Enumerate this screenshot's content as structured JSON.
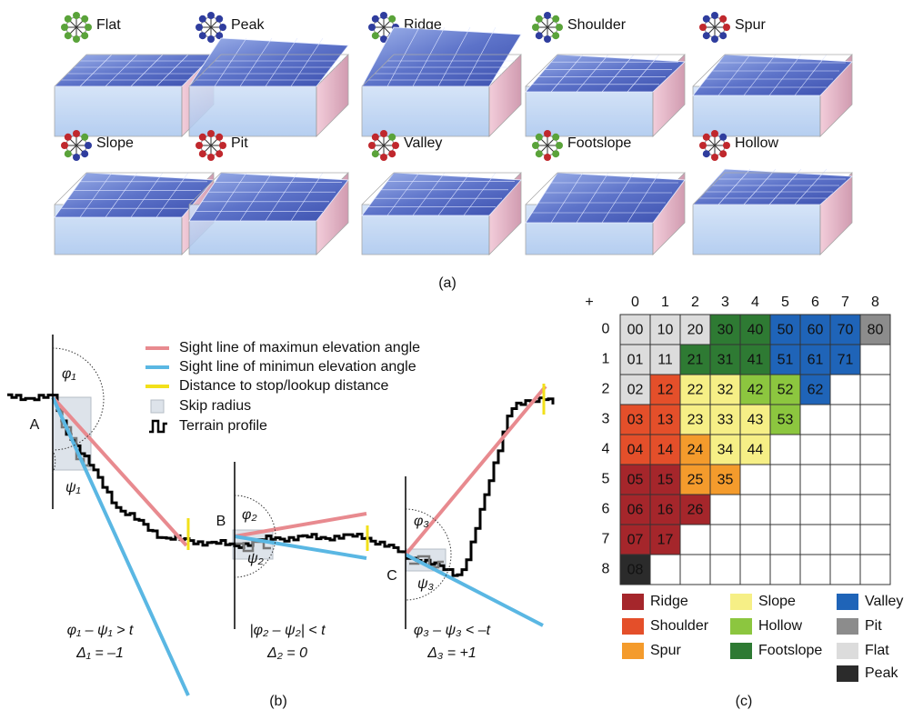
{
  "panel_a": {
    "landforms": [
      "Flat",
      "Peak",
      "Ridge",
      "Shoulder",
      "Spur",
      "Slope",
      "Pit",
      "Valley",
      "Footslope",
      "Hollow"
    ],
    "caption": "(a)"
  },
  "panel_b": {
    "legend": [
      "Sight line of maximun elevation angle",
      "Sight line of minimun elevation angle",
      "Distance to stop/lookup distance",
      "Skip radius",
      "Terrain profile"
    ],
    "points": [
      "A",
      "B",
      "C"
    ],
    "angles": [
      [
        "φ₁",
        "ψ₁"
      ],
      [
        "φ₂",
        "ψ₂"
      ],
      [
        "φ₃",
        "ψ₃"
      ]
    ],
    "conditions": [
      "φ₁ – ψ₁ > t",
      "|φ₂ – ψ₂| < t",
      "φ₃ – ψ₃ < –t"
    ],
    "deltas": [
      "Δ₁ = –1",
      "Δ₂ = 0",
      "Δ₃ = +1"
    ],
    "caption": "(b)"
  },
  "panel_c": {
    "corner": "+",
    "columns": [
      "0",
      "1",
      "2",
      "3",
      "4",
      "5",
      "6",
      "7",
      "8"
    ],
    "rows": [
      "0",
      "1",
      "2",
      "3",
      "4",
      "5",
      "6",
      "7",
      "8"
    ],
    "cells": [
      [
        {
          "label": "00",
          "color": "#dcdcdc"
        },
        {
          "label": "10",
          "color": "#dcdcdc"
        },
        {
          "label": "20",
          "color": "#dcdcdc"
        },
        {
          "label": "30",
          "color": "#2e7a33"
        },
        {
          "label": "40",
          "color": "#2e7a33"
        },
        {
          "label": "50",
          "color": "#1f64b8"
        },
        {
          "label": "60",
          "color": "#1f64b8"
        },
        {
          "label": "70",
          "color": "#1f64b8"
        },
        {
          "label": "80",
          "color": "#8c8c8c"
        }
      ],
      [
        {
          "label": "01",
          "color": "#dcdcdc"
        },
        {
          "label": "11",
          "color": "#dcdcdc"
        },
        {
          "label": "21",
          "color": "#2e7a33"
        },
        {
          "label": "31",
          "color": "#2e7a33"
        },
        {
          "label": "41",
          "color": "#2e7a33"
        },
        {
          "label": "51",
          "color": "#1f64b8"
        },
        {
          "label": "61",
          "color": "#1f64b8"
        },
        {
          "label": "71",
          "color": "#1f64b8"
        }
      ],
      [
        {
          "label": "02",
          "color": "#dcdcdc"
        },
        {
          "label": "12",
          "color": "#e44f2a"
        },
        {
          "label": "22",
          "color": "#f6ef86"
        },
        {
          "label": "32",
          "color": "#f6ef86"
        },
        {
          "label": "42",
          "color": "#8cc63f"
        },
        {
          "label": "52",
          "color": "#8cc63f"
        },
        {
          "label": "62",
          "color": "#1f64b8"
        }
      ],
      [
        {
          "label": "03",
          "color": "#e44f2a"
        },
        {
          "label": "13",
          "color": "#e44f2a"
        },
        {
          "label": "23",
          "color": "#f6ef86"
        },
        {
          "label": "33",
          "color": "#f6ef86"
        },
        {
          "label": "43",
          "color": "#f6ef86"
        },
        {
          "label": "53",
          "color": "#8cc63f"
        }
      ],
      [
        {
          "label": "04",
          "color": "#e44f2a"
        },
        {
          "label": "14",
          "color": "#e44f2a"
        },
        {
          "label": "24",
          "color": "#f49b2c"
        },
        {
          "label": "34",
          "color": "#f6ef86"
        },
        {
          "label": "44",
          "color": "#f6ef86"
        }
      ],
      [
        {
          "label": "05",
          "color": "#a5262b"
        },
        {
          "label": "15",
          "color": "#a5262b"
        },
        {
          "label": "25",
          "color": "#f49b2c"
        },
        {
          "label": "35",
          "color": "#f49b2c"
        }
      ],
      [
        {
          "label": "06",
          "color": "#a5262b"
        },
        {
          "label": "16",
          "color": "#a5262b"
        },
        {
          "label": "26",
          "color": "#a5262b"
        }
      ],
      [
        {
          "label": "07",
          "color": "#a5262b"
        },
        {
          "label": "17",
          "color": "#a5262b"
        }
      ],
      [
        {
          "label": "08",
          "color": "#2b2b2b"
        }
      ]
    ],
    "legend": [
      {
        "name": "Ridge",
        "color": "#a5262b"
      },
      {
        "name": "Shoulder",
        "color": "#e44f2a"
      },
      {
        "name": "Spur",
        "color": "#f49b2c"
      },
      {
        "name": "Slope",
        "color": "#f6ef86"
      },
      {
        "name": "Hollow",
        "color": "#8cc63f"
      },
      {
        "name": "Footslope",
        "color": "#2e7a33"
      },
      {
        "name": "Valley",
        "color": "#1f64b8"
      },
      {
        "name": "Pit",
        "color": "#8c8c8c"
      },
      {
        "name": "Flat",
        "color": "#dcdcdc"
      },
      {
        "name": "Peak",
        "color": "#2b2b2b"
      }
    ],
    "caption": "(c)"
  }
}
